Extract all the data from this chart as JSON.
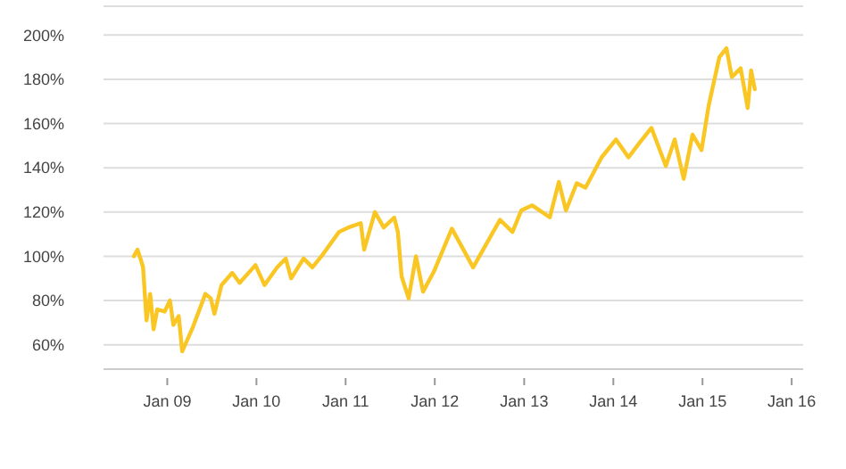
{
  "chart_data": {
    "type": "line",
    "x": [
      "2008-08-17",
      "2008-09-01",
      "2008-09-16",
      "2008-09-24",
      "2008-10-08",
      "2008-10-23",
      "2008-11-06",
      "2008-11-21",
      "2008-12-21",
      "2009-01-12",
      "2009-01-26",
      "2009-02-17",
      "2009-03-03",
      "2009-04-16",
      "2009-06-06",
      "2009-06-28",
      "2009-07-13",
      "2009-08-11",
      "2009-09-24",
      "2009-10-24",
      "2009-12-28",
      "2010-02-03",
      "2010-03-27",
      "2010-05-01",
      "2010-05-23",
      "2010-07-13",
      "2010-08-18",
      "2010-09-24",
      "2010-12-05",
      "2011-01-12",
      "2011-03-04",
      "2011-03-18",
      "2011-05-01",
      "2011-06-06",
      "2011-07-19",
      "2011-08-03",
      "2011-08-18",
      "2011-09-16",
      "2011-10-16",
      "2011-11-14",
      "2011-12-28",
      "2012-03-11",
      "2012-06-06",
      "2012-09-24",
      "2012-11-14",
      "2012-12-20",
      "2013-02-03",
      "2013-04-16",
      "2013-05-23",
      "2013-06-21",
      "2013-08-04",
      "2013-09-09",
      "2013-11-14",
      "2014-01-12",
      "2014-03-04",
      "2014-04-16",
      "2014-06-06",
      "2014-08-04",
      "2014-09-09",
      "2014-10-16",
      "2014-11-21",
      "2014-12-28",
      "2015-01-26",
      "2015-03-11",
      "2015-04-09",
      "2015-05-01",
      "2015-06-06",
      "2015-07-05",
      "2015-07-19",
      "2015-08-03"
    ],
    "series": [
      {
        "color": "#f9c623",
        "values": [
          100,
          103,
          98,
          95,
          71,
          83,
          67,
          76,
          75,
          80,
          69,
          73,
          57,
          68,
          83,
          81,
          74,
          87,
          92.5,
          88,
          96,
          87,
          95,
          99,
          90,
          99,
          95,
          100,
          111,
          113,
          115,
          103,
          120,
          113,
          117.5,
          111,
          91,
          81,
          100,
          84,
          93,
          112.5,
          95,
          116.5,
          111,
          120.7,
          123,
          117.6,
          133.6,
          120.7,
          133,
          131,
          144.7,
          152.8,
          144.7,
          151,
          158,
          140.8,
          152.8,
          135,
          155,
          148,
          168,
          190,
          194,
          181,
          185,
          167,
          184,
          175.5
        ]
      }
    ],
    "xlim": [
      "2008-04-15",
      "2016-02-17"
    ],
    "xticks": [
      {
        "value": "2009-01-01",
        "label": "Jan 09"
      },
      {
        "value": "2010-01-01",
        "label": "Jan 10"
      },
      {
        "value": "2011-01-01",
        "label": "Jan 11"
      },
      {
        "value": "2012-01-01",
        "label": "Jan 12"
      },
      {
        "value": "2013-01-01",
        "label": "Jan 13"
      },
      {
        "value": "2014-01-01",
        "label": "Jan 14"
      },
      {
        "value": "2015-01-01",
        "label": "Jan 15"
      },
      {
        "value": "2016-01-01",
        "label": "Jan 16"
      }
    ],
    "ylim": [
      49,
      213
    ],
    "yticks": [
      {
        "value": 60,
        "label": "60%"
      },
      {
        "value": 80,
        "label": "80%"
      },
      {
        "value": 100,
        "label": "100%"
      },
      {
        "value": 120,
        "label": "120%"
      },
      {
        "value": 140,
        "label": "140%"
      },
      {
        "value": 160,
        "label": "160%"
      },
      {
        "value": 180,
        "label": "180%"
      },
      {
        "value": 200,
        "label": "200%"
      }
    ],
    "grid": "y",
    "line_style": "solid"
  }
}
